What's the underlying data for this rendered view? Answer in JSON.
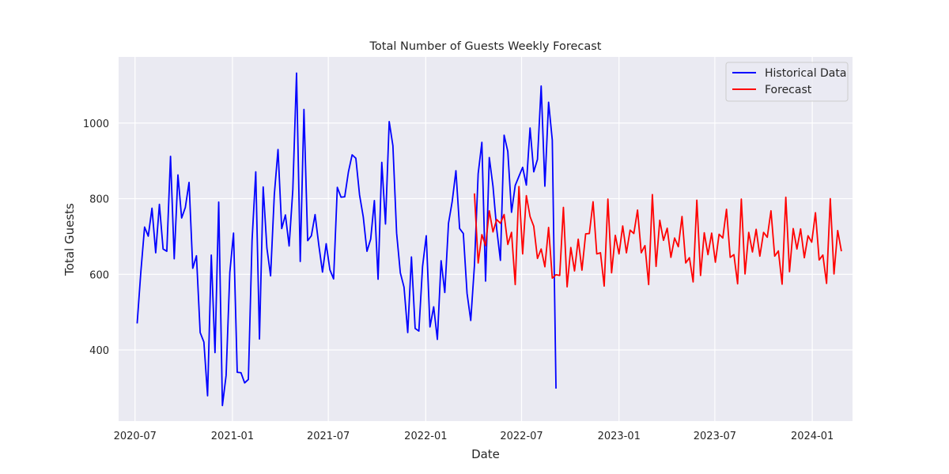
{
  "chart_data": {
    "type": "line",
    "title": "Total Number of Guests Weekly Forecast",
    "xlabel": "Date",
    "ylabel": "Total Guests",
    "x_ticks": [
      "2020-07",
      "2021-01",
      "2021-07",
      "2022-01",
      "2022-07",
      "2023-01",
      "2023-07",
      "2024-01"
    ],
    "y_ticks": [
      400,
      600,
      800,
      1000
    ],
    "xlim": [
      "2020-05-31",
      "2024-03-17"
    ],
    "ylim": [
      212,
      1175
    ],
    "grid": true,
    "legend_position": "top-right",
    "series": [
      {
        "name": "Historical Data",
        "color": "#0000ff",
        "start": "2020-07-05",
        "interval_days": 7,
        "values": [
          470,
          607,
          725,
          701,
          775,
          657,
          785,
          667,
          661,
          912,
          641,
          863,
          749,
          777,
          843,
          616,
          649,
          446,
          421,
          279,
          651,
          393,
          791,
          253,
          333,
          605,
          709,
          341,
          340,
          313,
          322,
          690,
          871,
          429,
          831,
          670,
          596,
          810,
          930,
          721,
          757,
          675,
          824,
          1132,
          634,
          1036,
          689,
          702,
          758,
          678,
          606,
          681,
          612,
          588,
          830,
          804,
          805,
          871,
          916,
          907,
          810,
          752,
          661,
          693,
          795,
          587,
          896,
          733,
          1004,
          940,
          709,
          604,
          566,
          446,
          646,
          457,
          450,
          621,
          702,
          461,
          514,
          428,
          636,
          552,
          735,
          793,
          874,
          721,
          708,
          550,
          478,
          624,
          866,
          949,
          582,
          909,
          833,
          720,
          637,
          968,
          925,
          764,
          835,
          859,
          883,
          836,
          987,
          871,
          904,
          1098,
          833,
          1055,
          955,
          298
        ]
      },
      {
        "name": "Forecast",
        "color": "#ff0000",
        "start": "2022-04-03",
        "interval_days": 7,
        "values": [
          814,
          630,
          705,
          676,
          768,
          712,
          745,
          735,
          758,
          679,
          711,
          573,
          832,
          654,
          808,
          753,
          727,
          642,
          667,
          620,
          724,
          590,
          599,
          597,
          777,
          567,
          671,
          609,
          693,
          611,
          707,
          708,
          792,
          654,
          657,
          569,
          799,
          604,
          703,
          654,
          728,
          657,
          717,
          708,
          770,
          657,
          676,
          573,
          811,
          621,
          743,
          690,
          722,
          645,
          696,
          673,
          753,
          630,
          644,
          580,
          796,
          597,
          710,
          652,
          709,
          632,
          706,
          696,
          772,
          645,
          652,
          575,
          799,
          601,
          711,
          659,
          719,
          648,
          711,
          698,
          768,
          648,
          662,
          574,
          804,
          607,
          721,
          667,
          720,
          644,
          702,
          685,
          763,
          638,
          651,
          576,
          800,
          601,
          716,
          661
        ]
      }
    ]
  }
}
